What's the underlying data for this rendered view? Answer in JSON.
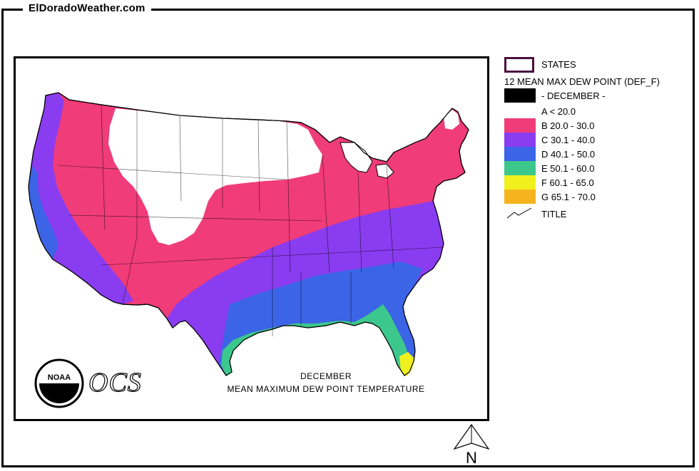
{
  "site_title": "ElDoradoWeather.com",
  "map": {
    "caption_month": "DECEMBER",
    "caption_title": "MEAN MAXIMUM DEW POINT TEMPERATURE",
    "logo_agency": "NOAA",
    "logo_text": "OCS"
  },
  "legend": {
    "states_label": "STATES",
    "heading": "12 MEAN MAX DEW POINT (DEF_F)",
    "month_label": "- DECEMBER -",
    "title_label": "TITLE",
    "classes": [
      {
        "label": "A < 20.0",
        "color": "#ffffff"
      },
      {
        "label": "B 20.0 - 30.0",
        "color": "#f03c78"
      },
      {
        "label": "C 30.1 - 40.0",
        "color": "#8a3cf0"
      },
      {
        "label": "D 40.1 - 50.0",
        "color": "#3c64e6"
      },
      {
        "label": "E 50.1 - 60.0",
        "color": "#3cc88c"
      },
      {
        "label": "F 60.1 - 65.0",
        "color": "#f0f01e"
      },
      {
        "label": "G 65.1 - 70.0",
        "color": "#f5b41e"
      }
    ]
  },
  "north_arrow": {
    "label": "N"
  }
}
